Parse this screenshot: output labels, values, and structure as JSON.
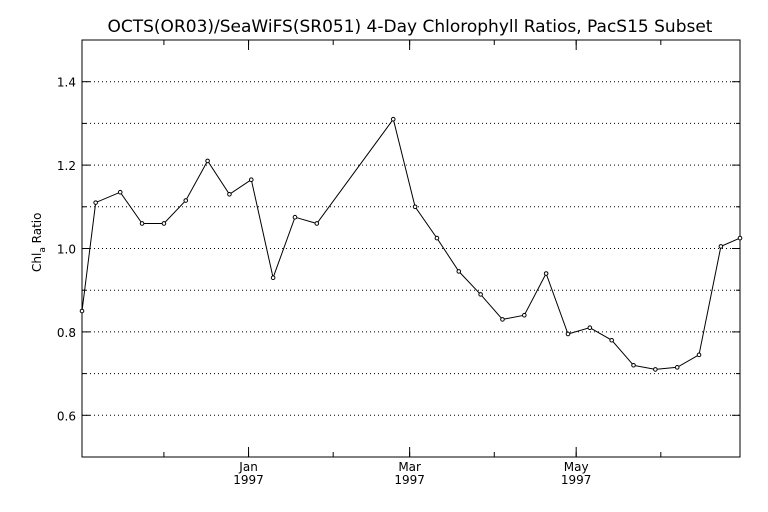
{
  "chart_data": {
    "type": "line",
    "title": "OCTS(OR03)/SeaWiFS(SR051) 4-Day Chlorophyll Ratios, PacS15 Subset",
    "ylabel_main": "Chl",
    "ylabel_sub": "a",
    "ylabel_rest": " Ratio",
    "ylim": [
      0.5,
      1.5
    ],
    "yticks": [
      {
        "value": 0.6,
        "label": "0.6"
      },
      {
        "value": 0.8,
        "label": "0.8"
      },
      {
        "value": 1.0,
        "label": "1.0"
      },
      {
        "value": 1.2,
        "label": "1.2"
      },
      {
        "value": 1.4,
        "label": "1.4"
      }
    ],
    "grid_y": [
      0.6,
      0.7,
      0.8,
      0.9,
      1.0,
      1.1,
      1.2,
      1.3,
      1.4
    ],
    "x_range": [
      "1996-11-01",
      "1997-06-30"
    ],
    "xticks": [
      {
        "date": "1997-01-01",
        "month": "Jan",
        "year": "1997"
      },
      {
        "date": "1997-03-01",
        "month": "Mar",
        "year": "1997"
      },
      {
        "date": "1997-05-01",
        "month": "May",
        "year": "1997"
      }
    ],
    "minor_xticks": [
      "1996-11-01",
      "1996-12-01",
      "1997-01-01",
      "1997-02-01",
      "1997-03-01",
      "1997-04-01",
      "1997-05-01",
      "1997-06-01"
    ],
    "x": [
      "1996-11-01",
      "1996-11-06",
      "1996-11-15",
      "1996-11-23",
      "1996-12-01",
      "1996-12-09",
      "1996-12-17",
      "1996-12-25",
      "1997-01-02",
      "1997-01-10",
      "1997-01-18",
      "1997-01-26",
      "1997-02-23",
      "1997-03-03",
      "1997-03-11",
      "1997-03-19",
      "1997-03-27",
      "1997-04-04",
      "1997-04-12",
      "1997-04-20",
      "1997-04-28",
      "1997-05-06",
      "1997-05-14",
      "1997-05-22",
      "1997-05-30",
      "1997-06-07",
      "1997-06-15",
      "1997-06-23",
      "1997-06-30"
    ],
    "series": [
      {
        "values": [
          0.85,
          1.11,
          1.135,
          1.06,
          1.06,
          1.115,
          1.21,
          1.13,
          1.165,
          0.93,
          1.075,
          1.06,
          1.31,
          1.1,
          1.025,
          0.945,
          0.89,
          0.83,
          0.84,
          0.94,
          0.795,
          0.81,
          0.78,
          0.72,
          0.71,
          0.715,
          0.745,
          1.005,
          1.025
        ]
      }
    ],
    "grid": true,
    "legend": "none"
  }
}
